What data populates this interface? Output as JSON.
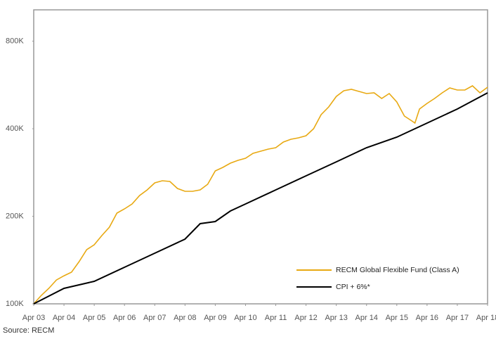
{
  "chart_data": {
    "type": "line",
    "source": "Source: RECM",
    "log_y": true,
    "legend": "lower right",
    "xlim": [
      0,
      15
    ],
    "xticks": [
      {
        "value": 0,
        "label": "Apr 03"
      },
      {
        "value": 1,
        "label": "Apr 04"
      },
      {
        "value": 2,
        "label": "Apr 05"
      },
      {
        "value": 3,
        "label": "Apr 06"
      },
      {
        "value": 4,
        "label": "Apr 07"
      },
      {
        "value": 5,
        "label": "Apr 08"
      },
      {
        "value": 6,
        "label": "Apr 09"
      },
      {
        "value": 7,
        "label": "Apr 10"
      },
      {
        "value": 8,
        "label": "Apr 11"
      },
      {
        "value": 9,
        "label": "Apr 12"
      },
      {
        "value": 10,
        "label": "Apr 13"
      },
      {
        "value": 11,
        "label": "Apr 14"
      },
      {
        "value": 12,
        "label": "Apr 15"
      },
      {
        "value": 13,
        "label": "Apr 16"
      },
      {
        "value": 14,
        "label": "Apr 17"
      },
      {
        "value": 15,
        "label": "Apr 18"
      }
    ],
    "ylim": [
      100000,
      1025000
    ],
    "yticks": [
      {
        "value": 100000,
        "label": "100K"
      },
      {
        "value": 200000,
        "label": "200K"
      },
      {
        "value": 400000,
        "label": "400K"
      },
      {
        "value": 800000,
        "label": "800K"
      }
    ],
    "series": [
      {
        "name": "RECM Global Flexible Fund (Class A)",
        "color": "#e8a912",
        "x": [
          0,
          0.25,
          0.5,
          0.75,
          1,
          1.25,
          1.5,
          1.75,
          2,
          2.25,
          2.5,
          2.75,
          3,
          3.25,
          3.5,
          3.75,
          4,
          4.25,
          4.5,
          4.75,
          5,
          5.25,
          5.5,
          5.75,
          6,
          6.25,
          6.5,
          6.75,
          7,
          7.25,
          7.5,
          7.75,
          8,
          8.25,
          8.5,
          8.75,
          9,
          9.25,
          9.5,
          9.75,
          10,
          10.25,
          10.5,
          10.75,
          11,
          11.25,
          11.5,
          11.75,
          12,
          12.25,
          12.5,
          12.6,
          12.75,
          13,
          13.25,
          13.5,
          13.75,
          14,
          14.25,
          14.5,
          14.75,
          15
        ],
        "values": [
          100000,
          106900,
          113000,
          120800,
          124900,
          128500,
          139700,
          153500,
          159600,
          171600,
          183500,
          205100,
          212000,
          220500,
          235700,
          246400,
          260600,
          265000,
          263500,
          249200,
          243700,
          243700,
          246400,
          257600,
          286400,
          294500,
          304500,
          311400,
          316600,
          329200,
          334700,
          340300,
          344100,
          359800,
          368000,
          372100,
          378300,
          400000,
          447200,
          475400,
          516600,
          540300,
          546400,
          537400,
          528500,
          531400,
          508100,
          528500,
          494200,
          442200,
          425200,
          418200,
          467500,
          488800,
          508100,
          531400,
          552500,
          543400,
          543400,
          561800,
          531400,
          555500
        ]
      },
      {
        "name": "CPI + 6%*",
        "color": "#000000",
        "x": [
          0,
          1,
          2,
          3,
          4,
          5,
          5.5,
          6,
          6.5,
          7,
          8,
          9,
          10,
          11,
          12,
          13,
          14,
          15
        ],
        "values": [
          100000,
          113000,
          119500,
          133600,
          149300,
          166900,
          188700,
          191800,
          208500,
          220500,
          246400,
          275500,
          307800,
          344100,
          374200,
          418200,
          467500,
          531400
        ]
      }
    ]
  }
}
